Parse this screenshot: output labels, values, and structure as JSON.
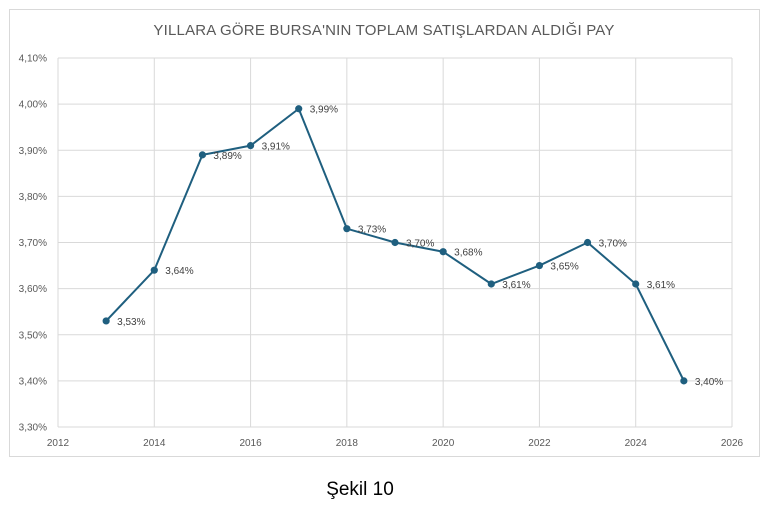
{
  "caption": "Şekil 10",
  "chart_data": {
    "type": "scatter",
    "title": "YILLARA GÖRE BURSA'NIN TOPLAM SATIŞLARDAN ALDIĞI PAY",
    "xlabel": "",
    "ylabel": "",
    "xlim": [
      2012,
      2026
    ],
    "ylim": [
      3.3,
      4.1
    ],
    "x_ticks": [
      "2012",
      "2014",
      "2016",
      "2018",
      "2020",
      "2022",
      "2024",
      "2026"
    ],
    "y_ticks": [
      "3,30%",
      "3,40%",
      "3,50%",
      "3,60%",
      "3,70%",
      "3,80%",
      "3,90%",
      "4,00%",
      "4,10%"
    ],
    "grid": true,
    "legend": "none",
    "color": "#1f5f7f",
    "series": [
      {
        "x": [
          2013,
          2014,
          2015,
          2016,
          2017,
          2018,
          2019,
          2020,
          2021,
          2022,
          2023,
          2024,
          2025
        ],
        "y": [
          3.53,
          3.64,
          3.89,
          3.91,
          3.99,
          3.73,
          3.7,
          3.68,
          3.61,
          3.65,
          3.7,
          3.61,
          3.4
        ],
        "labels": [
          "3,53%",
          "3,64%",
          "3,89%",
          "3,91%",
          "3,99%",
          "3,73%",
          "3,70%",
          "3,68%",
          "3,61%",
          "3,65%",
          "3,70%",
          "3,61%",
          "3,40%"
        ]
      }
    ]
  }
}
